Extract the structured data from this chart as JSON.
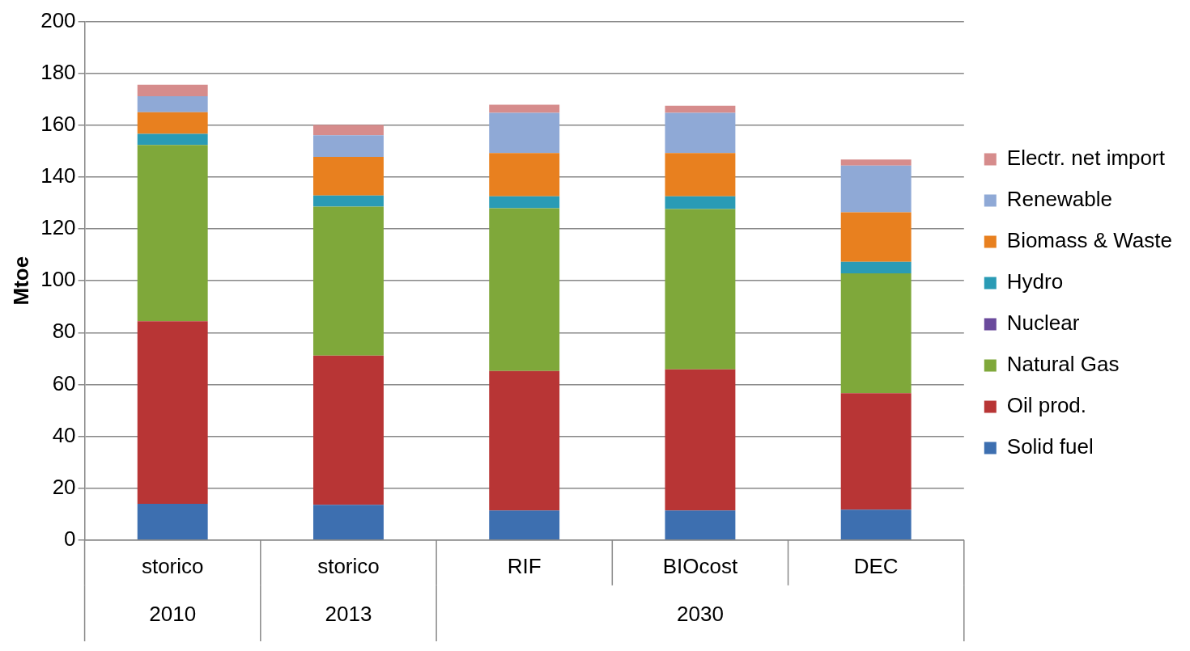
{
  "chart_data": {
    "type": "bar",
    "stacked": true,
    "ylabel": "Mtoe",
    "categories": [
      "storico",
      "storico",
      "RIF",
      "BIOcost",
      "DEC"
    ],
    "ylim": [
      0,
      200
    ],
    "yticks": [
      0,
      20,
      40,
      60,
      80,
      100,
      120,
      140,
      160,
      180,
      200
    ],
    "grid": "y",
    "legend": "right",
    "annotations": [
      "2010",
      "2013",
      "2030"
    ],
    "series": [
      {
        "name": "Solid fuel",
        "color": "#3d6fb0",
        "values": [
          14,
          13.6,
          11.4,
          11.4,
          11.7
        ]
      },
      {
        "name": "Oil prod.",
        "color": "#b83535",
        "values": [
          70.4,
          57.5,
          53.8,
          54.4,
          44.9
        ]
      },
      {
        "name": "Natural Gas",
        "color": "#7fa83a",
        "values": [
          68,
          57.5,
          62.8,
          61.9,
          46.3
        ]
      },
      {
        "name": "Nuclear",
        "color": "#6a4a9c",
        "values": [
          0,
          0,
          0,
          0,
          0
        ]
      },
      {
        "name": "Hydro",
        "color": "#2a9bb5",
        "values": [
          4.3,
          4.3,
          4.6,
          4.9,
          4.4
        ]
      },
      {
        "name": "Biomass & Waste",
        "color": "#e8801f",
        "values": [
          8.3,
          14.9,
          16.7,
          16.7,
          19.1
        ]
      },
      {
        "name": "Renewable",
        "color": "#8fa9d6",
        "values": [
          6.2,
          8.3,
          15.5,
          15.5,
          18
        ]
      },
      {
        "name": "Electr. net import",
        "color": "#d68c8c",
        "values": [
          4.4,
          4,
          3.1,
          2.7,
          2.4
        ]
      }
    ]
  }
}
